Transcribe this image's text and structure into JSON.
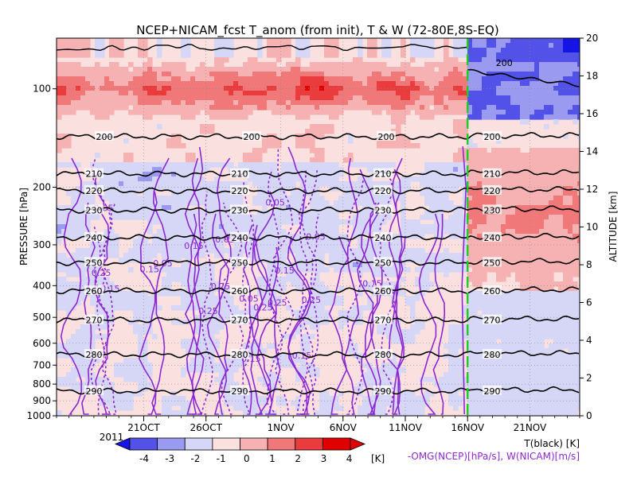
{
  "chart_data": {
    "type": "heatmap",
    "title": "NCEP+NICAM_fcst T_anom (from init), T & W  (72-80E,8S-EQ)",
    "ylabel": "PRESSURE [hPa]",
    "ylabel_right": "ALTITUDE [km]",
    "year_label": "2011",
    "x_range": [
      "2011-10-14",
      "2011-11-25"
    ],
    "x_ticks": [
      {
        "date": "2011-10-21",
        "label": "21OCT"
      },
      {
        "date": "2011-10-26",
        "label": "26OCT"
      },
      {
        "date": "2011-11-01",
        "label": "1NOV"
      },
      {
        "date": "2011-11-06",
        "label": "6NOV"
      },
      {
        "date": "2011-11-11",
        "label": "11NOV"
      },
      {
        "date": "2011-11-16",
        "label": "16NOV"
      },
      {
        "date": "2011-11-21",
        "label": "21NOV"
      }
    ],
    "forecast_init_date": "2011-11-16",
    "pressure_range_hPa": [
      1000,
      70
    ],
    "pressure_scale": "log",
    "pressure_ticks": [
      {
        "value": 100,
        "label": "100"
      },
      {
        "value": 200,
        "label": "200"
      },
      {
        "value": 300,
        "label": "300"
      },
      {
        "value": 400,
        "label": "400"
      },
      {
        "value": 500,
        "label": "500"
      },
      {
        "value": 600,
        "label": "600"
      },
      {
        "value": 700,
        "label": "700"
      },
      {
        "value": 800,
        "label": "800"
      },
      {
        "value": 900,
        "label": "900"
      },
      {
        "value": 1000,
        "label": "1000"
      }
    ],
    "altitude_range_km": [
      0,
      20
    ],
    "altitude_ticks": [
      {
        "value": 0,
        "label": "0"
      },
      {
        "value": 2,
        "label": "2"
      },
      {
        "value": 4,
        "label": "4"
      },
      {
        "value": 6,
        "label": "6"
      },
      {
        "value": 8,
        "label": "8"
      },
      {
        "value": 10,
        "label": "10"
      },
      {
        "value": 12,
        "label": "12"
      },
      {
        "value": 14,
        "label": "14"
      },
      {
        "value": 16,
        "label": "16"
      },
      {
        "value": 18,
        "label": "18"
      },
      {
        "value": 20,
        "label": "20"
      }
    ],
    "shading_levels": [
      {
        "label": "-4",
        "color": "#1414e6"
      },
      {
        "label": "-3",
        "color": "#5252e8"
      },
      {
        "label": "-2",
        "color": "#9a9af0"
      },
      {
        "label": "-1",
        "color": "#d6d6f6"
      },
      {
        "label": "0",
        "color": "#fbe0e0"
      },
      {
        "label": "1",
        "color": "#f6b2b2"
      },
      {
        "label": "2",
        "color": "#f07878"
      },
      {
        "label": "3",
        "color": "#ea3c3c"
      },
      {
        "label": "4",
        "color": "#e00000"
      }
    ],
    "colorbar_unit": "[K]",
    "temperature_contours": [
      {
        "value": 200,
        "label": "200",
        "pressure": 140
      },
      {
        "value": 210,
        "label": "210",
        "pressure": 182
      },
      {
        "value": 220,
        "label": "220",
        "pressure": 205
      },
      {
        "value": 230,
        "label": "230",
        "pressure": 235
      },
      {
        "value": 240,
        "label": "240",
        "pressure": 285
      },
      {
        "value": 250,
        "label": "250",
        "pressure": 340
      },
      {
        "value": 260,
        "label": "260",
        "pressure": 415
      },
      {
        "value": 270,
        "label": "270",
        "pressure": 510
      },
      {
        "value": 280,
        "label": "280",
        "pressure": 650
      },
      {
        "value": 290,
        "label": "290",
        "pressure": 840
      }
    ],
    "forecast_200K_pressure": 88,
    "w_contour_labels": [
      "0.05",
      "0.1",
      "0.15",
      "0.2",
      "0.25",
      "-0.05"
    ],
    "legend_t": "T(black) [K]",
    "legend_w": "-OMG(NCEP)[hPa/s], W(NICAM)[m/s]",
    "colors": {
      "t_contour": "#000000",
      "w_contour": "#8c28d2",
      "forecast_line": "#22cc22",
      "grid": "#888888"
    }
  }
}
